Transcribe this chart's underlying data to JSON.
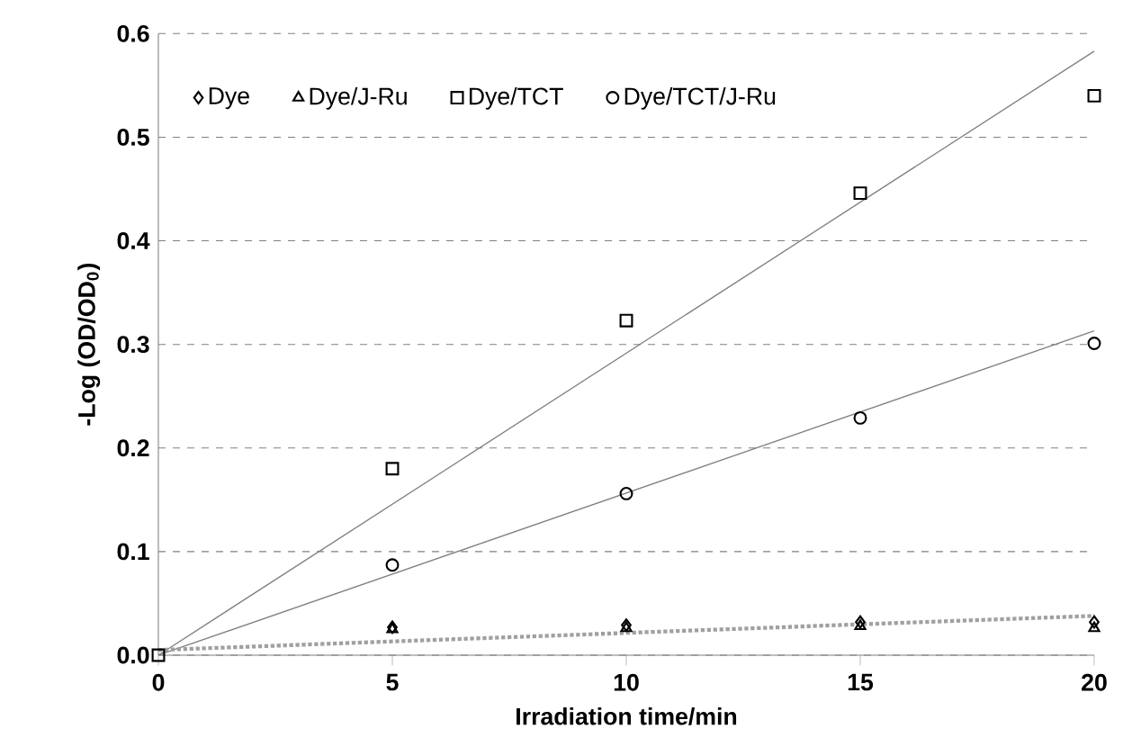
{
  "chart_data": {
    "type": "scatter",
    "xlabel": "Irradiation time/min",
    "ylabel": "-Log (OD/OD$_{0}$)",
    "xlim": [
      0,
      20
    ],
    "ylim": [
      0,
      0.6
    ],
    "xticks": [
      0,
      5,
      10,
      15,
      20
    ],
    "yticks": [
      {
        "value": 0,
        "label": "0.0"
      },
      0.1,
      0.2,
      0.3,
      0.4,
      0.5,
      0.6
    ],
    "grid": "y",
    "legend": "top left",
    "series": [
      {
        "name": "Dye",
        "color": "#000000",
        "marker": "diamond",
        "x": [
          5,
          10,
          15,
          20
        ],
        "values": [
          0.027,
          0.029,
          0.032,
          0.032
        ]
      },
      {
        "name": "Dye/J-Ru",
        "color": "#000000",
        "marker": "triangle",
        "x": [
          5,
          10,
          15,
          20
        ],
        "values": [
          0.025,
          0.026,
          0.028,
          0.026
        ]
      },
      {
        "name": "Dye/TCT",
        "color": "#000000",
        "marker": "square",
        "x": [
          0,
          5,
          10,
          15,
          20
        ],
        "values": [
          0,
          0.18,
          0.323,
          0.446,
          0.54
        ]
      },
      {
        "name": "Dye/TCT/J-Ru",
        "color": "#000000",
        "marker": "circle",
        "x": [
          5,
          10,
          15,
          20
        ],
        "values": [
          0.087,
          0.156,
          0.229,
          0.301
        ]
      },
      {
        "type": "line",
        "color": "#808080",
        "line_style": "solid",
        "x": [
          0,
          20
        ],
        "values": [
          0,
          0.583
        ]
      },
      {
        "type": "line",
        "color": "#808080",
        "line_style": "solid",
        "x": [
          0,
          20
        ],
        "values": [
          0,
          0.313
        ]
      },
      {
        "type": "line",
        "color": "#a0a0a0",
        "line_style": "dotted",
        "x": [
          0,
          20
        ],
        "values": [
          0.005,
          0.038
        ]
      }
    ]
  }
}
